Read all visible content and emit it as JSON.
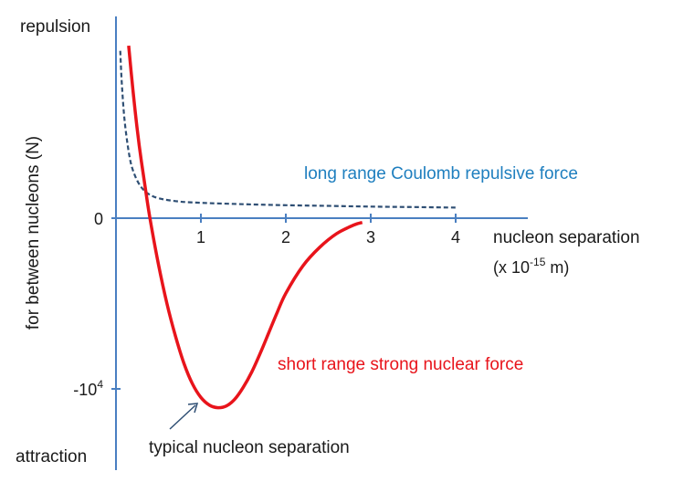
{
  "chart_data": {
    "type": "line",
    "xlabel_line1": "nucleon separation",
    "xlabel_line2_prefix": "(x 10",
    "xlabel_line2_exponent": "-15",
    "xlabel_line2_suffix": " m)",
    "ylabel": "for between nucleons (N)",
    "y_top_label": "repulsion",
    "y_bottom_label": "attraction",
    "x_ticks": [
      {
        "value": 1,
        "label": "1"
      },
      {
        "value": 2,
        "label": "2"
      },
      {
        "value": 3,
        "label": "3"
      },
      {
        "value": 4,
        "label": "4"
      }
    ],
    "y_ticks": [
      {
        "value": 0,
        "label": "0"
      },
      {
        "value": -10000,
        "label_base": "-10",
        "label_exp": "4"
      }
    ],
    "xlim": [
      0,
      4.2
    ],
    "ylim": [
      -13000,
      10500
    ],
    "grid": false,
    "series": [
      {
        "name": "long range Coulomb repulsive force",
        "color": "#2f4f74",
        "style": "dashed",
        "x": [
          0.05,
          0.07,
          0.1,
          0.15,
          0.2,
          0.3,
          0.45,
          0.7,
          1.0,
          1.5,
          2.0,
          2.5,
          3.0,
          3.5,
          4.0
        ],
        "y": [
          9800,
          7800,
          5800,
          3900,
          2800,
          1800,
          1250,
          1000,
          900,
          820,
          760,
          720,
          680,
          650,
          620
        ]
      },
      {
        "name": "short range strong nuclear force",
        "color": "#e8141b",
        "style": "solid",
        "x": [
          0.15,
          0.2,
          0.25,
          0.3,
          0.35,
          0.4,
          0.5,
          0.6,
          0.7,
          0.8,
          0.9,
          1.0,
          1.1,
          1.2,
          1.3,
          1.4,
          1.5,
          1.6,
          1.7,
          1.8,
          1.9,
          2.0,
          2.2,
          2.4,
          2.6,
          2.8,
          2.9
        ],
        "y": [
          10100,
          7500,
          5200,
          3300,
          1600,
          0,
          -2700,
          -5000,
          -6900,
          -8500,
          -9700,
          -10500,
          -10950,
          -11100,
          -11000,
          -10600,
          -9900,
          -9000,
          -7900,
          -6700,
          -5500,
          -4400,
          -2800,
          -1700,
          -900,
          -400,
          -250
        ]
      }
    ],
    "annotations": [
      {
        "text": "long range Coulomb repulsive force",
        "color": "#1f7fbf"
      },
      {
        "text": "short range strong nuclear force",
        "color": "#e8141b"
      },
      {
        "text": "typical nucleon separation",
        "color": "#1a1a1a"
      }
    ],
    "axis_color": "#4a7fc1"
  }
}
